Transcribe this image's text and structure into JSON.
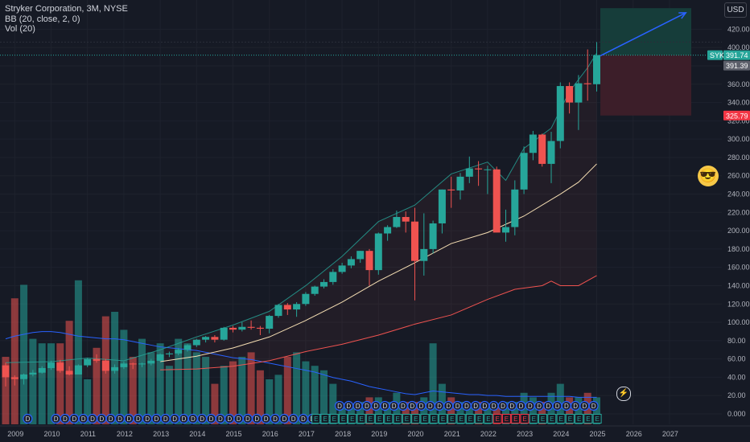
{
  "legend": {
    "title": "Stryker Corporation, 3M, NYSE",
    "bb": "BB (20, close, 2, 0)",
    "vol": "Vol (20)"
  },
  "currency_button": "USD",
  "emoji_icon": "smiling-face-with-sunglasses",
  "price_scale": [
    "420.00",
    "400.00",
    "380.00",
    "360.00",
    "340.00",
    "320.00",
    "300.00",
    "280.00",
    "260.00",
    "240.00",
    "220.00",
    "200.00",
    "180.00",
    "160.00",
    "140.00",
    "120.00",
    "100.00",
    "80.00",
    "60.00",
    "40.00",
    "20.00",
    "0.000"
  ],
  "time_axis": [
    "2009",
    "2010",
    "2011",
    "2012",
    "2013",
    "2014",
    "2015",
    "2016",
    "2017",
    "2018",
    "2019",
    "2020",
    "2021",
    "2022",
    "2023",
    "2024",
    "2025",
    "2026",
    "2027"
  ],
  "price_tags": {
    "symbol": "SYK",
    "last": "391.74",
    "prev": "391.39",
    "stop": "325.79"
  },
  "colors": {
    "up": "#26a69a",
    "down": "#ef5350",
    "bb_upper": "#26a69a",
    "bb_basis": "#f5deb3",
    "bb_lower": "#ef5350",
    "vol_ma": "#2962ff",
    "arrow": "#2962ff",
    "target_zone": "#163f3b",
    "stop_zone": "#3e1f29"
  },
  "chart_data": {
    "type": "candlestick",
    "title": "Stryker Corporation, 3M, NYSE",
    "interval": "3M",
    "ylim": [
      -8,
      443
    ],
    "candles": [
      {
        "t": 2008.75,
        "o": 53,
        "h": 56,
        "l": 30,
        "c": 40
      },
      {
        "t": 2009.0,
        "o": 40,
        "h": 42,
        "l": 31,
        "c": 38
      },
      {
        "t": 2009.25,
        "o": 38,
        "h": 44,
        "l": 32,
        "c": 43
      },
      {
        "t": 2009.5,
        "o": 43,
        "h": 48,
        "l": 41,
        "c": 45
      },
      {
        "t": 2009.75,
        "o": 45,
        "h": 52,
        "l": 44,
        "c": 50
      },
      {
        "t": 2010.0,
        "o": 50,
        "h": 58,
        "l": 48,
        "c": 56
      },
      {
        "t": 2010.25,
        "o": 56,
        "h": 59,
        "l": 45,
        "c": 47
      },
      {
        "t": 2010.5,
        "o": 47,
        "h": 52,
        "l": 42,
        "c": 43
      },
      {
        "t": 2010.75,
        "o": 43,
        "h": 54,
        "l": 43,
        "c": 53
      },
      {
        "t": 2011.0,
        "o": 53,
        "h": 61,
        "l": 51,
        "c": 60
      },
      {
        "t": 2011.25,
        "o": 60,
        "h": 65,
        "l": 56,
        "c": 58
      },
      {
        "t": 2011.5,
        "o": 58,
        "h": 60,
        "l": 44,
        "c": 47
      },
      {
        "t": 2011.75,
        "o": 47,
        "h": 54,
        "l": 44,
        "c": 51
      },
      {
        "t": 2012.0,
        "o": 51,
        "h": 57,
        "l": 49,
        "c": 55
      },
      {
        "t": 2012.25,
        "o": 55,
        "h": 56,
        "l": 49,
        "c": 54
      },
      {
        "t": 2012.5,
        "o": 54,
        "h": 56,
        "l": 51,
        "c": 55
      },
      {
        "t": 2012.75,
        "o": 55,
        "h": 60,
        "l": 53,
        "c": 58
      },
      {
        "t": 2013.0,
        "o": 58,
        "h": 66,
        "l": 57,
        "c": 65
      },
      {
        "t": 2013.25,
        "o": 65,
        "h": 68,
        "l": 62,
        "c": 66
      },
      {
        "t": 2013.5,
        "o": 66,
        "h": 72,
        "l": 64,
        "c": 70
      },
      {
        "t": 2013.75,
        "o": 70,
        "h": 76,
        "l": 68,
        "c": 75
      },
      {
        "t": 2014.0,
        "o": 75,
        "h": 82,
        "l": 73,
        "c": 81
      },
      {
        "t": 2014.25,
        "o": 81,
        "h": 85,
        "l": 78,
        "c": 84
      },
      {
        "t": 2014.5,
        "o": 84,
        "h": 86,
        "l": 78,
        "c": 81
      },
      {
        "t": 2014.75,
        "o": 81,
        "h": 95,
        "l": 80,
        "c": 94
      },
      {
        "t": 2015.0,
        "o": 94,
        "h": 96,
        "l": 89,
        "c": 92
      },
      {
        "t": 2015.25,
        "o": 92,
        "h": 100,
        "l": 90,
        "c": 95
      },
      {
        "t": 2015.5,
        "o": 95,
        "h": 102,
        "l": 92,
        "c": 94
      },
      {
        "t": 2015.75,
        "o": 94,
        "h": 96,
        "l": 86,
        "c": 93
      },
      {
        "t": 2016.0,
        "o": 93,
        "h": 108,
        "l": 88,
        "c": 107
      },
      {
        "t": 2016.25,
        "o": 107,
        "h": 120,
        "l": 105,
        "c": 119
      },
      {
        "t": 2016.5,
        "o": 119,
        "h": 121,
        "l": 108,
        "c": 114
      },
      {
        "t": 2016.75,
        "o": 114,
        "h": 122,
        "l": 106,
        "c": 120
      },
      {
        "t": 2017.0,
        "o": 120,
        "h": 133,
        "l": 118,
        "c": 131
      },
      {
        "t": 2017.25,
        "o": 131,
        "h": 140,
        "l": 129,
        "c": 139
      },
      {
        "t": 2017.5,
        "o": 139,
        "h": 147,
        "l": 137,
        "c": 144
      },
      {
        "t": 2017.75,
        "o": 144,
        "h": 158,
        "l": 141,
        "c": 155
      },
      {
        "t": 2018.0,
        "o": 155,
        "h": 165,
        "l": 153,
        "c": 162
      },
      {
        "t": 2018.25,
        "o": 162,
        "h": 172,
        "l": 159,
        "c": 169
      },
      {
        "t": 2018.5,
        "o": 169,
        "h": 178,
        "l": 165,
        "c": 178
      },
      {
        "t": 2018.75,
        "o": 178,
        "h": 180,
        "l": 140,
        "c": 157
      },
      {
        "t": 2019.0,
        "o": 157,
        "h": 198,
        "l": 152,
        "c": 197
      },
      {
        "t": 2019.25,
        "o": 197,
        "h": 206,
        "l": 189,
        "c": 204
      },
      {
        "t": 2019.5,
        "o": 204,
        "h": 222,
        "l": 203,
        "c": 215
      },
      {
        "t": 2019.75,
        "o": 215,
        "h": 221,
        "l": 198,
        "c": 210
      },
      {
        "t": 2020.0,
        "o": 210,
        "h": 225,
        "l": 124,
        "c": 167
      },
      {
        "t": 2020.25,
        "o": 167,
        "h": 219,
        "l": 151,
        "c": 180
      },
      {
        "t": 2020.5,
        "o": 180,
        "h": 211,
        "l": 175,
        "c": 208
      },
      {
        "t": 2020.75,
        "o": 208,
        "h": 245,
        "l": 197,
        "c": 245
      },
      {
        "t": 2021.0,
        "o": 245,
        "h": 259,
        "l": 225,
        "c": 244
      },
      {
        "t": 2021.25,
        "o": 244,
        "h": 263,
        "l": 234,
        "c": 259
      },
      {
        "t": 2021.5,
        "o": 259,
        "h": 281,
        "l": 252,
        "c": 268
      },
      {
        "t": 2021.75,
        "o": 268,
        "h": 276,
        "l": 249,
        "c": 267
      },
      {
        "t": 2022.0,
        "o": 267,
        "h": 271,
        "l": 240,
        "c": 267
      },
      {
        "t": 2022.25,
        "o": 267,
        "h": 270,
        "l": 199,
        "c": 198
      },
      {
        "t": 2022.5,
        "o": 198,
        "h": 223,
        "l": 188,
        "c": 204
      },
      {
        "t": 2022.75,
        "o": 204,
        "h": 255,
        "l": 195,
        "c": 245
      },
      {
        "t": 2023.0,
        "o": 245,
        "h": 292,
        "l": 240,
        "c": 285
      },
      {
        "t": 2023.25,
        "o": 285,
        "h": 309,
        "l": 277,
        "c": 305
      },
      {
        "t": 2023.5,
        "o": 305,
        "h": 306,
        "l": 270,
        "c": 273
      },
      {
        "t": 2023.75,
        "o": 273,
        "h": 308,
        "l": 252,
        "c": 298
      },
      {
        "t": 2024.0,
        "o": 298,
        "h": 362,
        "l": 290,
        "c": 358
      },
      {
        "t": 2024.25,
        "o": 358,
        "h": 362,
        "l": 328,
        "c": 340
      },
      {
        "t": 2024.5,
        "o": 340,
        "h": 370,
        "l": 310,
        "c": 361
      },
      {
        "t": 2024.75,
        "o": 361,
        "h": 398,
        "l": 342,
        "c": 360
      },
      {
        "t": 2025.0,
        "o": 360,
        "h": 406,
        "l": 352,
        "c": 391.74
      }
    ],
    "bb_upper": [
      [
        2008.75,
        56
      ],
      [
        2010,
        57
      ],
      [
        2011,
        61
      ],
      [
        2012,
        58
      ],
      [
        2013,
        70
      ],
      [
        2014,
        84
      ],
      [
        2015,
        97
      ],
      [
        2016,
        112
      ],
      [
        2017,
        140
      ],
      [
        2018,
        172
      ],
      [
        2019,
        210
      ],
      [
        2020,
        228
      ],
      [
        2021,
        262
      ],
      [
        2022,
        275
      ],
      [
        2022.5,
        255
      ],
      [
        2023,
        290
      ],
      [
        2023.75,
        312
      ],
      [
        2024.25,
        352
      ],
      [
        2024.75,
        378
      ],
      [
        2025,
        394
      ]
    ],
    "bb_basis": [
      [
        2013,
        57
      ],
      [
        2014,
        63
      ],
      [
        2015,
        72
      ],
      [
        2016,
        84
      ],
      [
        2017,
        102
      ],
      [
        2018,
        122
      ],
      [
        2019,
        145
      ],
      [
        2020,
        165
      ],
      [
        2021,
        186
      ],
      [
        2022,
        198
      ],
      [
        2023,
        216
      ],
      [
        2024,
        240
      ],
      [
        2024.5,
        253
      ],
      [
        2025,
        273
      ]
    ],
    "bb_lower": [
      [
        2013,
        48
      ],
      [
        2014,
        49
      ],
      [
        2015,
        52
      ],
      [
        2016,
        58
      ],
      [
        2017,
        68
      ],
      [
        2018,
        76
      ],
      [
        2019,
        86
      ],
      [
        2020,
        98
      ],
      [
        2021,
        108
      ],
      [
        2022,
        125
      ],
      [
        2022.75,
        136
      ],
      [
        2023.5,
        140
      ],
      [
        2023.75,
        145
      ],
      [
        2024,
        140
      ],
      [
        2024.5,
        140
      ],
      [
        2025,
        151
      ]
    ],
    "volume": [
      0.75,
      1.4,
      1.55,
      0.95,
      0.9,
      0.9,
      0.9,
      1.15,
      1.6,
      0.5,
      0.85,
      1.2,
      1.25,
      1.05,
      0.75,
      0.95,
      0.8,
      0.9,
      0.65,
      0.95,
      0.9,
      0.8,
      0.75,
      0.45,
      0.65,
      0.7,
      0.75,
      0.8,
      0.6,
      0.5,
      0.55,
      0.75,
      0.8,
      0.7,
      0.65,
      0.6,
      0.45,
      0.2,
      0.2,
      0.25,
      0.3,
      0.3,
      0.25,
      0.35,
      0.25,
      0.25,
      0.3,
      0.9,
      0.45,
      0.3,
      0.25,
      0.2,
      0.25,
      0.2,
      0.2,
      0.25,
      0.25,
      0.35,
      0.3,
      0.25,
      0.35,
      0.45,
      0.3,
      0.3,
      0.35,
      0.3
    ],
    "vol_ma": [
      0.95,
      0.98,
      1.0,
      1.02,
      1.03,
      1.03,
      1.02,
      1.0,
      0.98,
      0.97,
      0.96,
      0.95,
      0.95,
      0.94,
      0.92,
      0.9,
      0.88,
      0.86,
      0.85,
      0.84,
      0.83,
      0.82,
      0.8,
      0.78,
      0.76,
      0.74,
      0.73,
      0.72,
      0.7,
      0.68,
      0.66,
      0.64,
      0.62,
      0.6,
      0.58,
      0.55,
      0.52,
      0.5,
      0.48,
      0.45,
      0.42,
      0.4,
      0.38,
      0.36,
      0.34,
      0.33,
      0.35,
      0.37,
      0.36,
      0.35,
      0.34,
      0.33,
      0.33,
      0.32,
      0.32,
      0.31,
      0.31,
      0.31,
      0.31,
      0.31,
      0.31,
      0.31,
      0.31,
      0.3,
      0.3,
      0.3
    ],
    "position": {
      "entry": 391.74,
      "target": 443,
      "stop": 325.79,
      "start": 2025.1,
      "end": 2027.6
    },
    "projection_arrow": {
      "from": [
        2025.1,
        391
      ],
      "to": [
        2027.45,
        438
      ]
    },
    "markers": {
      "dividend_label": "D",
      "earnings_label": "E",
      "flash_icon": "lightning-icon"
    }
  }
}
